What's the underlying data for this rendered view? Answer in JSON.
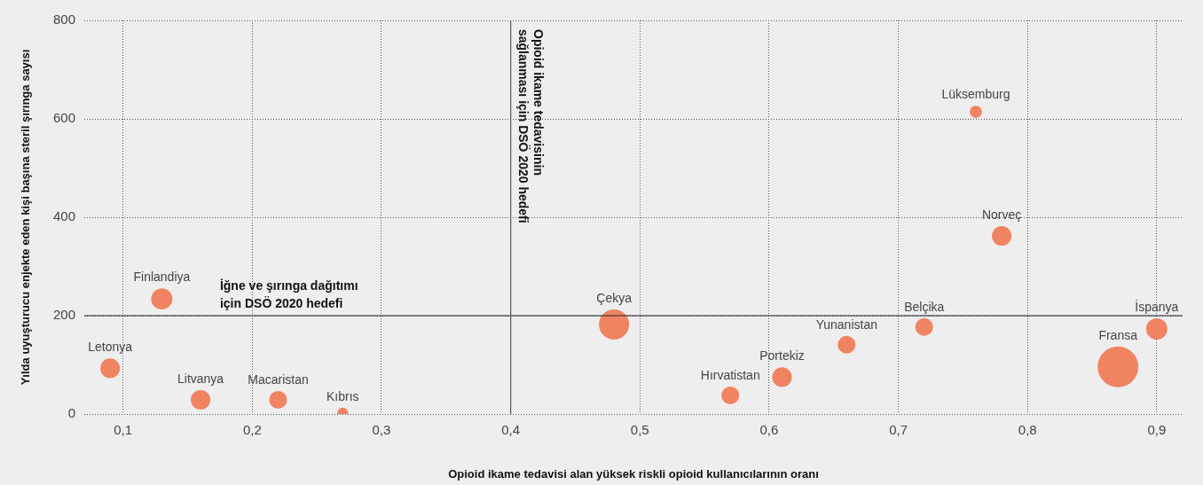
{
  "chart_data": {
    "type": "bubble",
    "xlabel": "Opioid ikame tedavisi alan yüksek riskli opioid kullanıcılarının oranı",
    "ylabel": "Yılda uyuşturucu enjekte eden kişi başına steril şırınga sayısı",
    "xlim": [
      0.07,
      0.92
    ],
    "xticks": [
      {
        "value": 0.1,
        "label": "0,1"
      },
      {
        "value": 0.2,
        "label": "0,2"
      },
      {
        "value": 0.3,
        "label": "0,3"
      },
      {
        "value": 0.4,
        "label": "0,4"
      },
      {
        "value": 0.5,
        "label": "0,5"
      },
      {
        "value": 0.6,
        "label": "0,6"
      },
      {
        "value": 0.7,
        "label": "0,7"
      },
      {
        "value": 0.8,
        "label": "0,8"
      },
      {
        "value": 0.9,
        "label": "0,9"
      }
    ],
    "ylim": [
      0,
      800
    ],
    "yticks": [
      0,
      200,
      400,
      600,
      800
    ],
    "grid": true,
    "legend": false,
    "series": [
      {
        "color": "#f08462",
        "x": [
          0.09,
          0.13,
          0.16,
          0.22,
          0.27,
          0.48,
          0.57,
          0.61,
          0.66,
          0.72,
          0.76,
          0.78,
          0.87,
          0.9
        ],
        "values": [
          93,
          234,
          29,
          29,
          2,
          182,
          38,
          75,
          141,
          177,
          614,
          362,
          96,
          173
        ],
        "sizes": [
          0.23,
          0.27,
          0.23,
          0.19,
          0.07,
          0.55,
          0.19,
          0.23,
          0.19,
          0.19,
          0.09,
          0.23,
          1,
          0.27
        ]
      }
    ],
    "annotations": [
      {
        "text": "Letonya",
        "x": 0.09,
        "y": 93
      },
      {
        "text": "Finlandiya",
        "x": 0.13,
        "y": 234
      },
      {
        "text": "Litvanya",
        "x": 0.16,
        "y": 29
      },
      {
        "text": "Macaristan",
        "x": 0.22,
        "y": 29
      },
      {
        "text": "Kıbrıs",
        "x": 0.27,
        "y": 2
      },
      {
        "text": "Çekya",
        "x": 0.48,
        "y": 182
      },
      {
        "text": "Hırvatistan",
        "x": 0.57,
        "y": 38
      },
      {
        "text": "Portekiz",
        "x": 0.61,
        "y": 75
      },
      {
        "text": "Yunanistan",
        "x": 0.66,
        "y": 141
      },
      {
        "text": "Belçika",
        "x": 0.72,
        "y": 177
      },
      {
        "text": "Lüksemburg",
        "x": 0.76,
        "y": 614
      },
      {
        "text": "Norveç",
        "x": 0.78,
        "y": 362
      },
      {
        "text": "Fransa",
        "x": 0.87,
        "y": 96
      },
      {
        "text": "İspanya",
        "x": 0.9,
        "y": 173
      }
    ],
    "ref_lines": [
      {
        "axis": "y",
        "value": 200,
        "label": "İğne ve şırınga dağıtımı\niçin DSÖ 2020 hedefi",
        "color": "#222222"
      },
      {
        "axis": "x",
        "value": 0.4,
        "label": "Opioid ikame tedavisinin\nsağlanması için DSÖ 2020 hedefi",
        "color": "#555555"
      }
    ]
  }
}
